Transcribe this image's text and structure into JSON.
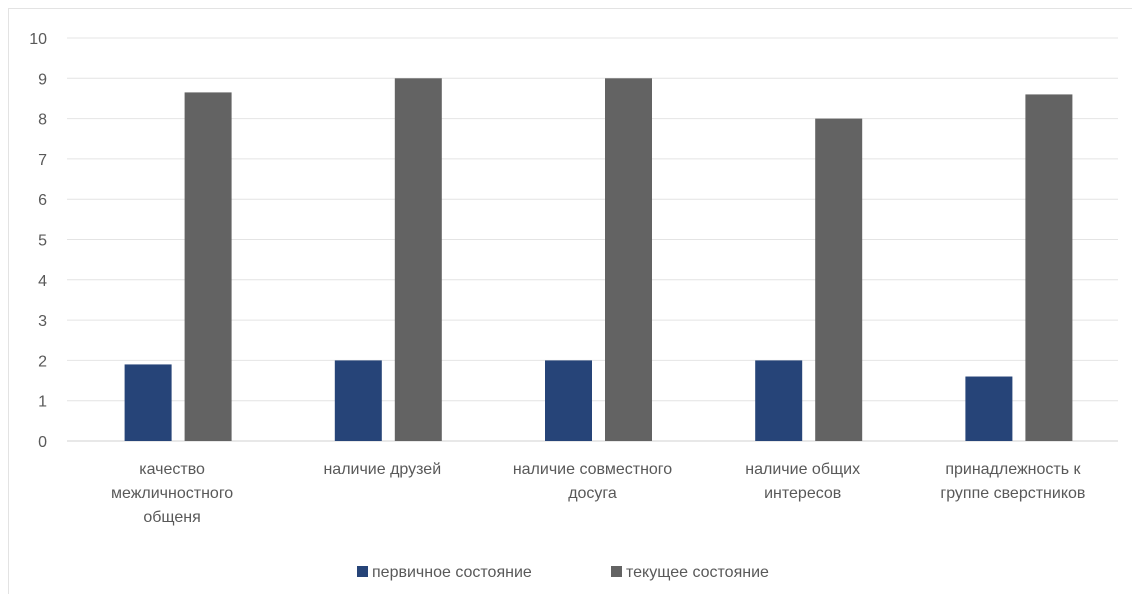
{
  "chart_data": {
    "type": "bar",
    "title": "",
    "xlabel": "",
    "ylabel": "",
    "ylim": [
      0,
      10
    ],
    "yticks": [
      0,
      1,
      2,
      3,
      4,
      5,
      6,
      7,
      8,
      9,
      10
    ],
    "grid": true,
    "legend_position": "bottom",
    "categories": [
      [
        "качество",
        "межличностного",
        "общеня"
      ],
      [
        "наличие друзей"
      ],
      [
        "наличие совместного",
        "досуга"
      ],
      [
        "наличие общих",
        "интересов"
      ],
      [
        "принадлежность к",
        "группе сверстников"
      ]
    ],
    "series": [
      {
        "name": "первичное состояние",
        "color": "#264478",
        "values": [
          1.9,
          2.0,
          2.0,
          2.0,
          1.6
        ]
      },
      {
        "name": "текущее состояние",
        "color": "#636363",
        "values": [
          8.65,
          9.0,
          9.0,
          8.0,
          8.6
        ]
      }
    ]
  }
}
